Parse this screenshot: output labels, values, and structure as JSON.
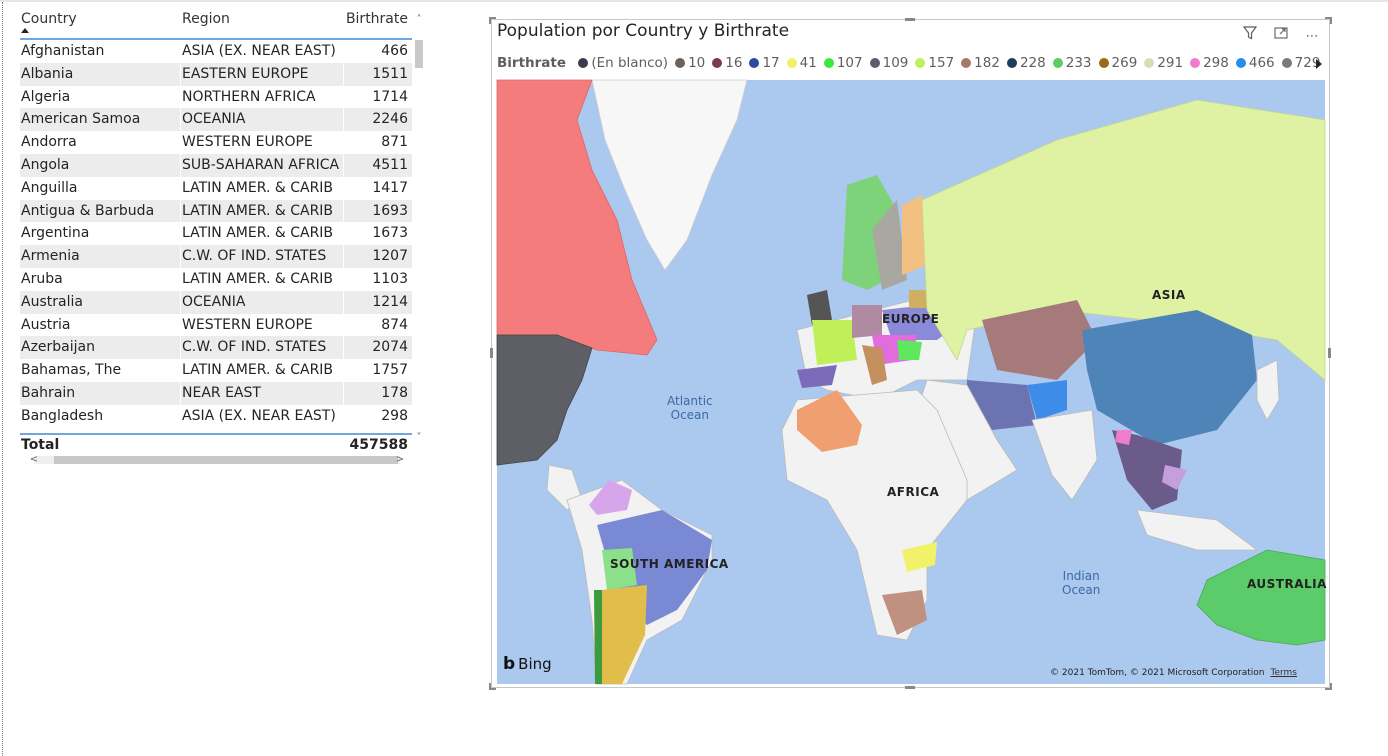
{
  "table": {
    "headers": {
      "country": "Country",
      "region": "Region",
      "birthrate": "Birthrate"
    },
    "rows": [
      {
        "country": "Afghanistan",
        "region": "ASIA (EX. NEAR EAST)",
        "birthrate": "466"
      },
      {
        "country": "Albania",
        "region": "EASTERN EUROPE",
        "birthrate": "1511"
      },
      {
        "country": "Algeria",
        "region": "NORTHERN AFRICA",
        "birthrate": "1714"
      },
      {
        "country": "American Samoa",
        "region": "OCEANIA",
        "birthrate": "2246"
      },
      {
        "country": "Andorra",
        "region": "WESTERN EUROPE",
        "birthrate": "871"
      },
      {
        "country": "Angola",
        "region": "SUB-SAHARAN AFRICA",
        "birthrate": "4511"
      },
      {
        "country": "Anguilla",
        "region": "LATIN AMER. & CARIB",
        "birthrate": "1417"
      },
      {
        "country": "Antigua & Barbuda",
        "region": "LATIN AMER. & CARIB",
        "birthrate": "1693"
      },
      {
        "country": "Argentina",
        "region": "LATIN AMER. & CARIB",
        "birthrate": "1673"
      },
      {
        "country": "Armenia",
        "region": "C.W. OF IND. STATES",
        "birthrate": "1207"
      },
      {
        "country": "Aruba",
        "region": "LATIN AMER. & CARIB",
        "birthrate": "1103"
      },
      {
        "country": "Australia",
        "region": "OCEANIA",
        "birthrate": "1214"
      },
      {
        "country": "Austria",
        "region": "WESTERN EUROPE",
        "birthrate": "874"
      },
      {
        "country": "Azerbaijan",
        "region": "C.W. OF IND. STATES",
        "birthrate": "2074"
      },
      {
        "country": "Bahamas, The",
        "region": "LATIN AMER. & CARIB",
        "birthrate": "1757"
      },
      {
        "country": "Bahrain",
        "region": "NEAR EAST",
        "birthrate": "178"
      },
      {
        "country": "Bangladesh",
        "region": "ASIA (EX. NEAR EAST)",
        "birthrate": "298"
      }
    ],
    "total_label": "Total",
    "total_value": "457588"
  },
  "map": {
    "title": "Population por Country y Birthrate",
    "legend_title": "Birthrate",
    "legend": [
      {
        "label": "(En blanco)",
        "color": "#3b3b4f"
      },
      {
        "label": "10",
        "color": "#6e6258"
      },
      {
        "label": "16",
        "color": "#7a3b4f"
      },
      {
        "label": "17",
        "color": "#2e4a9c"
      },
      {
        "label": "41",
        "color": "#f2f26a"
      },
      {
        "label": "107",
        "color": "#3de83d"
      },
      {
        "label": "109",
        "color": "#5c5c6e"
      },
      {
        "label": "157",
        "color": "#bff05a"
      },
      {
        "label": "182",
        "color": "#a67a6a"
      },
      {
        "label": "228",
        "color": "#1d3d5c"
      },
      {
        "label": "233",
        "color": "#5ccb6a"
      },
      {
        "label": "269",
        "color": "#9c6a10"
      },
      {
        "label": "291",
        "color": "#dcdcb4"
      },
      {
        "label": "298",
        "color": "#f07ccc"
      },
      {
        "label": "466",
        "color": "#2b8cf0"
      },
      {
        "label": "729",
        "color": "#7a7a7a"
      }
    ],
    "continent_labels": {
      "asia": "ASIA",
      "europe": "EUROPE",
      "africa": "AFRICA",
      "south_america": "SOUTH AMERICA",
      "australia": "AUSTRALIA"
    },
    "ocean_labels": {
      "atlantic_1": "Atlantic",
      "atlantic_2": "Ocean",
      "indian_1": "Indian",
      "indian_2": "Ocean"
    },
    "bing": "Bing",
    "copyright": "© 2021 TomTom, © 2021 Microsoft Corporation",
    "terms": "Terms",
    "icons": {
      "filter": "filter-icon",
      "focus": "focus-mode-icon",
      "more": "more-options-icon"
    }
  }
}
